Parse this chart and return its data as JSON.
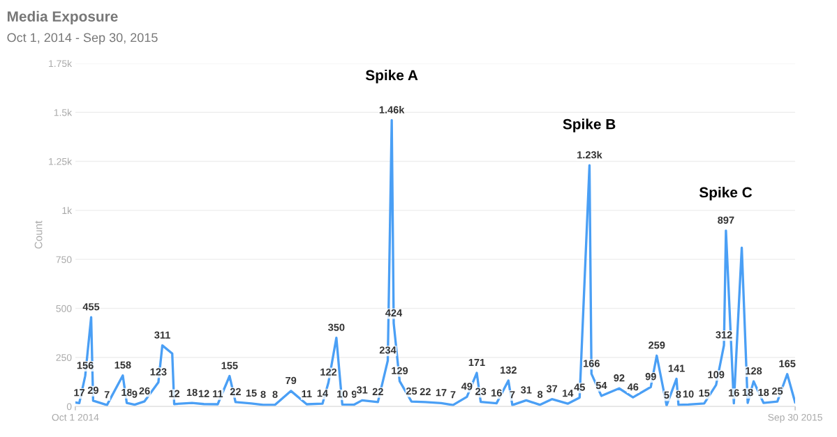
{
  "chart_data": {
    "type": "line",
    "title": "Media Exposure",
    "subtitle": "Oct 1, 2014 - Sep 30, 2015",
    "ylabel": "Count",
    "x": [
      "2014-10-01",
      "2014-10-03",
      "2014-10-06",
      "2014-10-09",
      "2014-10-10",
      "2014-10-17",
      "2014-10-25",
      "2014-10-27",
      "2014-10-31",
      "2014-11-05",
      "2014-11-12",
      "2014-11-14",
      "2014-11-19",
      "2014-11-20",
      "2014-11-29",
      "2014-12-05",
      "2014-12-12",
      "2014-12-18",
      "2014-12-21",
      "2014-12-29",
      "2015-01-04",
      "2015-01-10",
      "2015-01-18",
      "2015-01-26",
      "2015-02-03",
      "2015-02-06",
      "2015-02-10",
      "2015-02-13",
      "2015-02-19",
      "2015-02-23",
      "2015-03-03",
      "2015-03-08",
      "2015-03-10",
      "2015-03-11",
      "2015-03-14",
      "2015-03-20",
      "2015-03-27",
      "2015-04-04",
      "2015-04-10",
      "2015-04-17",
      "2015-04-22",
      "2015-04-24",
      "2015-05-02",
      "2015-05-08",
      "2015-05-10",
      "2015-05-17",
      "2015-05-24",
      "2015-05-30",
      "2015-06-07",
      "2015-06-13",
      "2015-06-18",
      "2015-06-19",
      "2015-06-24",
      "2015-07-03",
      "2015-07-10",
      "2015-07-19",
      "2015-07-22",
      "2015-07-27",
      "2015-08-01",
      "2015-08-02",
      "2015-08-07",
      "2015-08-15",
      "2015-08-21",
      "2015-08-25",
      "2015-08-26",
      "2015-08-30",
      "2015-09-03",
      "2015-09-06",
      "2015-09-09",
      "2015-09-14",
      "2015-09-21",
      "2015-09-26",
      "2015-09-30"
    ],
    "series": [
      {
        "color": "#4a9ff5",
        "values": [
          20,
          17,
          156,
          455,
          29,
          7,
          158,
          18,
          9,
          26,
          123,
          311,
          270,
          12,
          18,
          12,
          11,
          155,
          22,
          15,
          8,
          8,
          79,
          11,
          14,
          122,
          350,
          10,
          9,
          31,
          22,
          234,
          1460,
          424,
          129,
          25,
          22,
          17,
          7,
          49,
          171,
          23,
          16,
          132,
          7,
          31,
          8,
          37,
          14,
          45,
          1230,
          166,
          54,
          92,
          46,
          99,
          259,
          5,
          141,
          8,
          10,
          15,
          109,
          312,
          897,
          16,
          810,
          18,
          128,
          18,
          25,
          165,
          20
        ],
        "value_labels": [
          null,
          "17",
          "156",
          "455",
          "29",
          "7",
          "158",
          "18",
          "9",
          "26",
          "123",
          "311",
          null,
          "12",
          "18",
          "12",
          "11",
          "155",
          "22",
          "15",
          "8",
          "8",
          "79",
          "11",
          "14",
          "122",
          "350",
          "10",
          "9",
          "31",
          "22",
          "234",
          "1.46k",
          "424",
          "129",
          "25",
          "22",
          "17",
          "7",
          "49",
          "171",
          "23",
          "16",
          "132",
          "7",
          "31",
          "8",
          "37",
          "14",
          "45",
          "1.23k",
          "166",
          "54",
          "92",
          "46",
          "99",
          "259",
          "5",
          "141",
          "8",
          "10",
          "15",
          "109",
          "312",
          "897",
          "16",
          null,
          "18",
          "128",
          "18",
          "25",
          "165",
          null
        ]
      }
    ],
    "xlim": [
      "2014-10-01",
      "2015-09-30"
    ],
    "xticks": [
      {
        "value": "2014-10-01",
        "label": "Oct 1 2014"
      },
      {
        "value": "2015-09-30",
        "label": "Sep 30 2015"
      }
    ],
    "ylim": [
      0,
      1750
    ],
    "yticks": [
      0,
      250,
      500,
      750,
      {
        "value": 1000,
        "label": "1k"
      },
      {
        "value": 1250,
        "label": "1.25k"
      },
      {
        "value": 1500,
        "label": "1.5k"
      },
      {
        "value": 1750,
        "label": "1.75k"
      }
    ],
    "grid": "y",
    "legend": false,
    "marker": "none",
    "line_style": "solid",
    "annotations": [
      "Spike A",
      "Spike B",
      "Spike C"
    ]
  }
}
